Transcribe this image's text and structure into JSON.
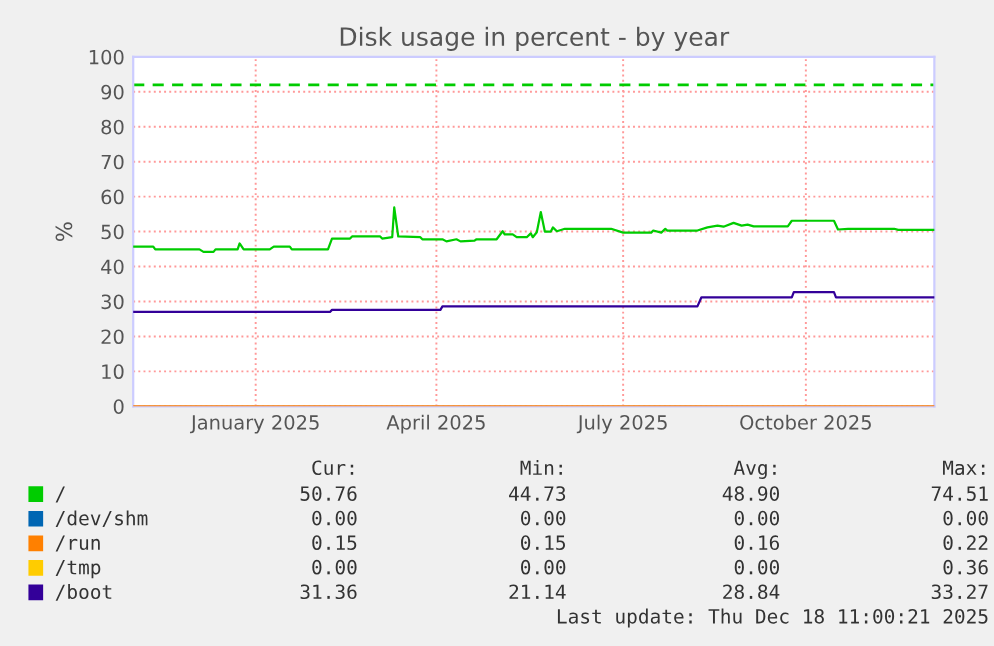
{
  "chart_data": {
    "type": "line",
    "title": "Disk usage in percent - by year",
    "ylabel": "%",
    "xlim": [
      "2024-11-14",
      "2025-12-18"
    ],
    "xticks": [
      {
        "value": "2025-01-14",
        "label": "January 2025"
      },
      {
        "value": "2025-04-14",
        "label": "April 2025"
      },
      {
        "value": "2025-07-16",
        "label": "July 2025"
      },
      {
        "value": "2025-10-15",
        "label": "October 2025"
      }
    ],
    "ylim": [
      0,
      100
    ],
    "yticks": [
      0,
      10,
      20,
      30,
      40,
      50,
      60,
      70,
      80,
      90,
      100
    ],
    "grid": true,
    "legend": "bottom",
    "marker": "none",
    "line_style": "solid",
    "series": [
      {
        "name": "/",
        "color": "#00cc00",
        "x": [
          "2024-11-14",
          "2024-11-24",
          "2024-11-25",
          "2024-12-17",
          "2024-12-19",
          "2024-12-24",
          "2024-12-25",
          "2025-01-05",
          "2025-01-06",
          "2025-01-08",
          "2025-01-21",
          "2025-01-23",
          "2025-01-31",
          "2025-02-01",
          "2025-02-19",
          "2025-02-21",
          "2025-03-02",
          "2025-03-03",
          "2025-03-17",
          "2025-03-18",
          "2025-03-23",
          "2025-03-24",
          "2025-03-26",
          "2025-04-06",
          "2025-04-07",
          "2025-04-17",
          "2025-04-19",
          "2025-04-24",
          "2025-04-26",
          "2025-05-03",
          "2025-05-04",
          "2025-05-14",
          "2025-05-17",
          "2025-05-18",
          "2025-05-22",
          "2025-05-24",
          "2025-05-29",
          "2025-05-31",
          "2025-06-01",
          "2025-06-03",
          "2025-06-05",
          "2025-06-07",
          "2025-06-10",
          "2025-06-11",
          "2025-06-13",
          "2025-06-17",
          "2025-07-10",
          "2025-07-16",
          "2025-07-30",
          "2025-07-31",
          "2025-08-04",
          "2025-08-06",
          "2025-08-07",
          "2025-08-22",
          "2025-08-27",
          "2025-09-01",
          "2025-09-04",
          "2025-09-09",
          "2025-09-13",
          "2025-09-16",
          "2025-09-19",
          "2025-10-06",
          "2025-10-08",
          "2025-10-29",
          "2025-10-31",
          "2025-11-05",
          "2025-11-28",
          "2025-11-30",
          "2025-12-18"
        ],
        "values": [
          45.7,
          45.7,
          44.9,
          44.9,
          44.2,
          44.2,
          44.9,
          44.9,
          46.6,
          44.9,
          44.9,
          45.7,
          45.7,
          44.9,
          44.9,
          48,
          48,
          48.6,
          48.6,
          48,
          48.4,
          56.9,
          48.6,
          48.4,
          47.8,
          47.8,
          47.2,
          47.8,
          47.2,
          47.4,
          47.8,
          47.8,
          50.1,
          49.2,
          49.2,
          48.4,
          48.4,
          49.5,
          48.4,
          49.8,
          55.6,
          50,
          50,
          51.2,
          50.1,
          50.8,
          50.8,
          49.7,
          49.7,
          50.3,
          49.7,
          50.8,
          50.3,
          50.3,
          51.2,
          51.7,
          51.4,
          52.5,
          51.7,
          52,
          51.5,
          51.5,
          53.1,
          53.1,
          50.6,
          50.8,
          50.8,
          50.5,
          50.5
        ]
      },
      {
        "name": "/dev/shm",
        "color": "#0066b3"
      },
      {
        "name": "/run",
        "color": "#ff8000",
        "x": [
          "2024-11-14",
          "2025-12-18"
        ],
        "values": [
          0,
          0
        ]
      },
      {
        "name": "/tmp",
        "color": "#ffcc00"
      },
      {
        "name": "/boot",
        "color": "#330099",
        "x": [
          "2024-11-14",
          "2025-02-20",
          "2025-02-21",
          "2025-04-16",
          "2025-04-17",
          "2025-08-22",
          "2025-08-24",
          "2025-10-08",
          "2025-10-09",
          "2025-10-29",
          "2025-10-30",
          "2025-12-18"
        ],
        "values": [
          27.0,
          27.0,
          27.6,
          27.6,
          28.6,
          28.6,
          31.2,
          31.2,
          32.7,
          32.7,
          31.2,
          31.2
        ]
      }
    ],
    "ref_lines": [
      {
        "axis": "y",
        "value": 92,
        "color": "#00cc00",
        "line_style": "dashed"
      }
    ],
    "annotations": [
      "Cur:",
      "Min:",
      "Avg:",
      "Max:",
      "50.76",
      "44.73",
      "48.90",
      "74.51",
      "0.00",
      "0.00",
      "0.00",
      "0.00",
      "0.15",
      "0.15",
      "0.16",
      "0.22",
      "0.00",
      "0.00",
      "0.00",
      "0.36",
      "31.36",
      "21.14",
      "28.84",
      "33.27",
      "Last update: Thu Dec 18 11:00:21 2025"
    ]
  }
}
